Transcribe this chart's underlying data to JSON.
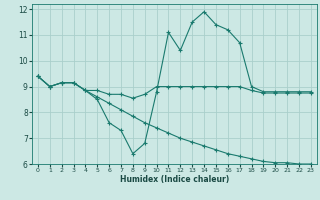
{
  "xlabel": "Humidex (Indice chaleur)",
  "bg_color": "#cce8e4",
  "line_color": "#1a7a6e",
  "grid_color": "#aacfcb",
  "xlim": [
    -0.5,
    23.5
  ],
  "ylim": [
    6,
    12.2
  ],
  "xticks": [
    0,
    1,
    2,
    3,
    4,
    5,
    6,
    7,
    8,
    9,
    10,
    11,
    12,
    13,
    14,
    15,
    16,
    17,
    18,
    19,
    20,
    21,
    22,
    23
  ],
  "yticks": [
    6,
    7,
    8,
    9,
    10,
    11,
    12
  ],
  "lines": [
    {
      "x": [
        0,
        1,
        2,
        3,
        4,
        5,
        6,
        7,
        8,
        9,
        10,
        11,
        12,
        13,
        14,
        15,
        16,
        17,
        18,
        19,
        20,
        21,
        22,
        23
      ],
      "y": [
        9.4,
        9.0,
        9.15,
        9.15,
        8.85,
        8.5,
        7.6,
        7.3,
        6.4,
        6.8,
        8.8,
        11.1,
        10.4,
        11.5,
        11.9,
        11.4,
        11.2,
        10.7,
        9.0,
        8.8,
        8.8,
        8.8,
        8.8,
        8.8
      ]
    },
    {
      "x": [
        0,
        1,
        2,
        3,
        4,
        5,
        6,
        7,
        8,
        9,
        10,
        11,
        12,
        13,
        14,
        15,
        16,
        17,
        18,
        19,
        20,
        21,
        22,
        23
      ],
      "y": [
        9.4,
        9.0,
        9.15,
        9.15,
        8.85,
        8.85,
        8.7,
        8.7,
        8.55,
        8.7,
        9.0,
        9.0,
        9.0,
        9.0,
        9.0,
        9.0,
        9.0,
        9.0,
        8.85,
        8.75,
        8.75,
        8.75,
        8.75,
        8.75
      ]
    },
    {
      "x": [
        0,
        1,
        2,
        3,
        4,
        5,
        6,
        7,
        8,
        9,
        10,
        11,
        12,
        13,
        14,
        15,
        16,
        17,
        18,
        19,
        20,
        21,
        22,
        23
      ],
      "y": [
        9.4,
        9.0,
        9.15,
        9.15,
        8.85,
        8.6,
        8.35,
        8.1,
        7.85,
        7.6,
        7.4,
        7.2,
        7.0,
        6.85,
        6.7,
        6.55,
        6.4,
        6.3,
        6.2,
        6.1,
        6.05,
        6.05,
        6.0,
        6.0
      ]
    }
  ]
}
